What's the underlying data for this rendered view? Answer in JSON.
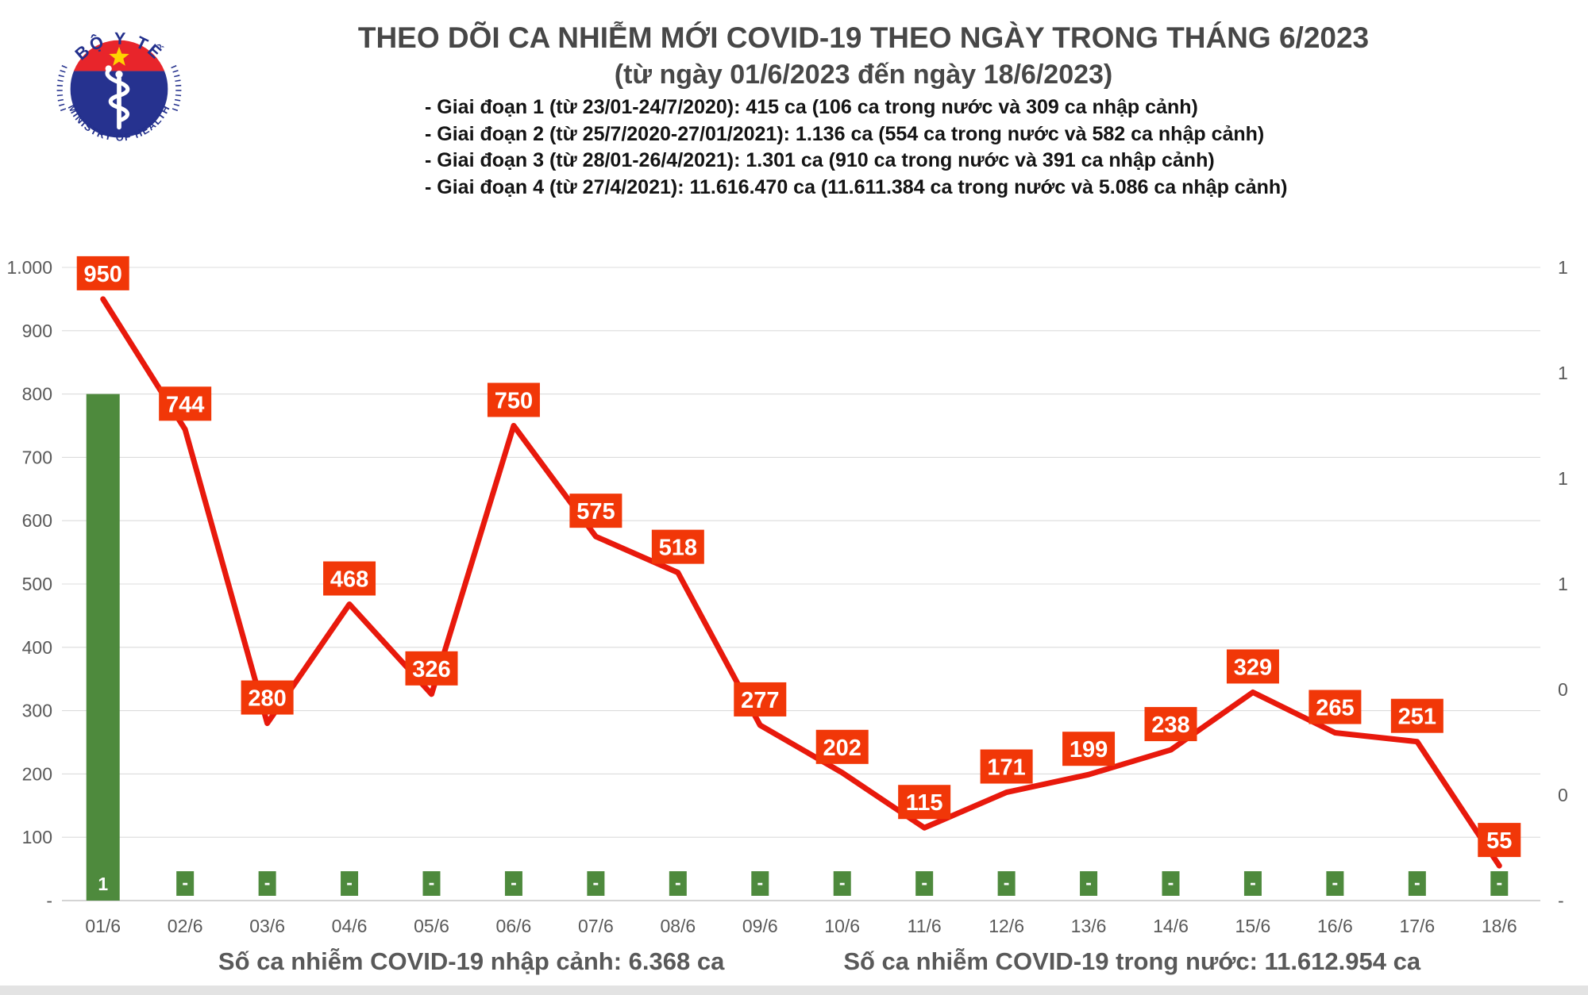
{
  "logo": {
    "top_text": "BỘ Y TẾ",
    "bottom_text": "MINISTRY OF HEALTH"
  },
  "header": {
    "title_line1": "THEO DÕI CA NHIỄM MỚI COVID-19 THEO NGÀY TRONG THÁNG 6/2023",
    "title_line2": "(từ ngày 01/6/2023 đến ngày 18/6/2023)",
    "bullets": [
      "- Giai đoạn 1 (từ 23/01-24/7/2020): 415 ca (106 ca trong nước và 309 ca nhập cảnh)",
      "- Giai đoạn 2 (từ 25/7/2020-27/01/2021): 1.136 ca (554 ca trong nước và 582 ca nhập cảnh)",
      "- Giai đoạn 3 (từ 28/01-26/4/2021): 1.301 ca (910 ca trong nước và 391 ca nhập cảnh)",
      "- Giai đoạn 4 (từ 27/4/2021): 11.616.470 ca (11.611.384 ca trong nước và 5.086 ca nhập cảnh)"
    ]
  },
  "chart_data": {
    "type": "line",
    "title": "THEO DÕI CA NHIỄM MỚI COVID-19 THEO NGÀY TRONG THÁNG 6/2023 (từ ngày 01/6/2023 đến ngày 18/6/2023)",
    "categories": [
      "01/6",
      "02/6",
      "03/6",
      "04/6",
      "05/6",
      "06/6",
      "07/6",
      "08/6",
      "09/6",
      "10/6",
      "11/6",
      "12/6",
      "13/6",
      "14/6",
      "15/6",
      "16/6",
      "17/6",
      "18/6"
    ],
    "series": [
      {
        "name": "Số ca nhiễm COVID-19 trong nước",
        "type": "line",
        "color": "#e8190c",
        "values": [
          950,
          744,
          280,
          468,
          326,
          750,
          575,
          518,
          277,
          202,
          115,
          171,
          199,
          238,
          329,
          265,
          251,
          55
        ]
      },
      {
        "name": "Số ca nhiễm COVID-19 nhập cảnh",
        "type": "bar",
        "color": "#4e8a3d",
        "values": [
          1,
          0,
          0,
          0,
          0,
          0,
          0,
          0,
          0,
          0,
          0,
          0,
          0,
          0,
          0,
          0,
          0,
          0
        ],
        "zero_label": "-"
      }
    ],
    "label_box_color": "#f13708",
    "left_axis": {
      "max": 1000,
      "min": 0,
      "ticks": [
        "1.000",
        "900",
        "800",
        "700",
        "600",
        "500",
        "400",
        "300",
        "200",
        "100",
        "-"
      ]
    },
    "right_axis": {
      "max": 1.25,
      "min": 0,
      "ticks": [
        "1",
        "1",
        "1",
        "1",
        "0",
        "0",
        "-"
      ]
    },
    "grid": true,
    "legend_position": "bottom"
  },
  "legend": {
    "bar_label": "Số ca nhiễm COVID-19 nhập cảnh: 6.368 ca",
    "line_label": "Số ca nhiễm COVID-19 trong nước: 11.612.954 ca"
  }
}
